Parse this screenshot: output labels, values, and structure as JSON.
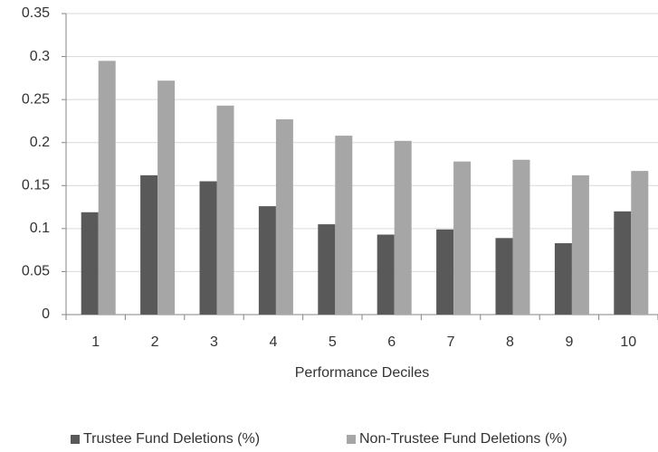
{
  "chart_data": {
    "type": "bar",
    "x_label": "Performance Deciles",
    "categories": [
      "1",
      "2",
      "3",
      "4",
      "5",
      "6",
      "7",
      "8",
      "9",
      "10"
    ],
    "series": [
      {
        "name": "Trustee Fund Deletions (%)",
        "color": "#595959",
        "values": [
          0.119,
          0.162,
          0.155,
          0.126,
          0.105,
          0.093,
          0.099,
          0.089,
          0.083,
          0.12
        ]
      },
      {
        "name": "Non-Trustee Fund Deletions (%)",
        "color": "#a6a6a6",
        "values": [
          0.295,
          0.272,
          0.243,
          0.227,
          0.208,
          0.202,
          0.178,
          0.18,
          0.162,
          0.167
        ]
      }
    ],
    "ylim": [
      0,
      0.35
    ],
    "yticks": [
      0,
      0.05,
      0.1,
      0.15,
      0.2,
      0.25,
      0.3,
      0.35
    ],
    "grid": true,
    "legend": "bottom"
  }
}
